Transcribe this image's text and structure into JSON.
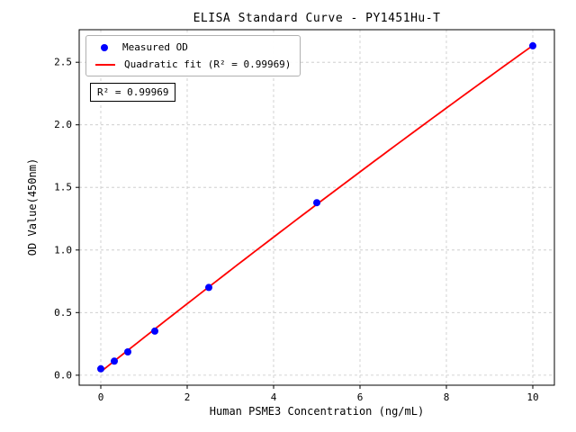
{
  "chart_data": {
    "type": "scatter",
    "title": "ELISA Standard Curve - PY1451Hu-T",
    "xlabel": "Human PSME3 Concentration (ng/mL)",
    "ylabel": "OD Value(450nm)",
    "x": [
      0,
      0.313,
      0.625,
      1.25,
      2.5,
      5,
      10
    ],
    "y": [
      0.051,
      0.112,
      0.186,
      0.352,
      0.701,
      1.378,
      2.631
    ],
    "fit_type": "quadratic",
    "r_squared": 0.99969,
    "xlim": [
      -0.5,
      10.5
    ],
    "ylim": [
      -0.08,
      2.76
    ],
    "xticks": [
      0,
      2,
      4,
      6,
      8,
      10
    ],
    "xtick_labels": [
      "0",
      "2",
      "4",
      "6",
      "8",
      "10"
    ],
    "yticks": [
      0,
      0.5,
      1,
      1.5,
      2,
      2.5
    ],
    "ytick_labels": [
      "0.0",
      "0.5",
      "1.0",
      "1.5",
      "2.0",
      "2.5"
    ],
    "grid": true,
    "legend_position": "upper-left",
    "legend": [
      {
        "label": "Measured OD",
        "marker": "circle",
        "color": "#0000ff"
      },
      {
        "label": "Quadratic fit (R² = 0.99969)",
        "marker": "line",
        "color": "#ff0000"
      }
    ],
    "annotation": "R² = 0.99969",
    "colors": {
      "points": "#0000ff",
      "fit_line": "#ff0000",
      "grid": "#c8c8c8",
      "axis": "#000000",
      "background": "#ffffff"
    }
  }
}
